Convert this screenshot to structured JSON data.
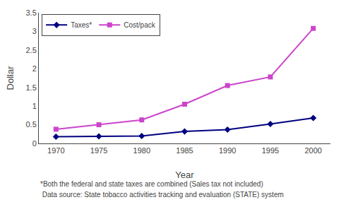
{
  "chart_data": {
    "type": "line",
    "x": [
      1970,
      1975,
      1980,
      1985,
      1990,
      1995,
      2000
    ],
    "series": [
      {
        "name": "Taxes*",
        "color": "#000080",
        "marker": "diamond",
        "values": [
          0.18,
          0.19,
          0.2,
          0.32,
          0.37,
          0.52,
          0.68
        ]
      },
      {
        "name": "Cost/pack",
        "color": "#cc44cc",
        "marker": "square",
        "values": [
          0.38,
          0.5,
          0.63,
          1.05,
          1.55,
          1.78,
          3.08
        ]
      }
    ],
    "xlabel": "Year",
    "ylabel": "Dollar",
    "xlim": [
      1968,
      2002
    ],
    "xticks": [
      1970,
      1975,
      1980,
      1985,
      1990,
      1995,
      2000
    ],
    "ylim": [
      0,
      3.5
    ],
    "yticks": [
      0,
      0.5,
      1,
      1.5,
      2,
      2.5,
      3,
      3.5
    ],
    "legend": "upper left",
    "grid": false,
    "annotations": [
      "*Both the federal and state taxes are combined (Sales tax not included)",
      " Data source: State tobacco activities tracking and evaluation (STATE) system"
    ]
  }
}
